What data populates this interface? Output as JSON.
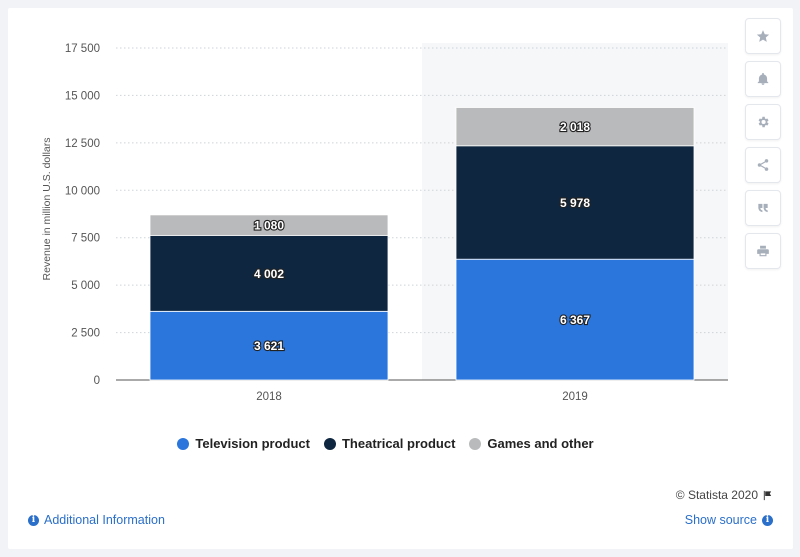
{
  "chart_data": {
    "type": "bar",
    "stacked": true,
    "categories": [
      "2018",
      "2019"
    ],
    "series": [
      {
        "name": "Television product",
        "values": [
          3621,
          6367
        ],
        "color": "#2a76dd",
        "value_labels": [
          "3 621",
          "6 367"
        ]
      },
      {
        "name": "Theatrical product",
        "values": [
          4002,
          5978
        ],
        "color": "#0e2640",
        "value_labels": [
          "4 002",
          "5 978"
        ]
      },
      {
        "name": "Games and other",
        "values": [
          1080,
          2018
        ],
        "color": "#b9babb",
        "value_labels": [
          "1 080",
          "2 018"
        ]
      }
    ],
    "ylabel": "Revenue in million U.S. dollars",
    "xlabel": "",
    "ylim": [
      0,
      17500
    ],
    "y_ticks": [
      0,
      2500,
      5000,
      7500,
      10000,
      12500,
      15000,
      17500
    ],
    "y_tick_labels": [
      "0",
      "2 500",
      "5 000",
      "7 500",
      "10 000",
      "12 500",
      "15 000",
      "17 500"
    ],
    "grid": true,
    "highlighted_category": "2019",
    "legend_position": "bottom-center"
  },
  "toolbar": {
    "icons": [
      "star-icon",
      "bell-icon",
      "gear-icon",
      "share-icon",
      "quote-icon",
      "print-icon"
    ]
  },
  "footer": {
    "credit": "© Statista 2020",
    "additional_info": "Additional Information",
    "show_source": "Show source"
  }
}
